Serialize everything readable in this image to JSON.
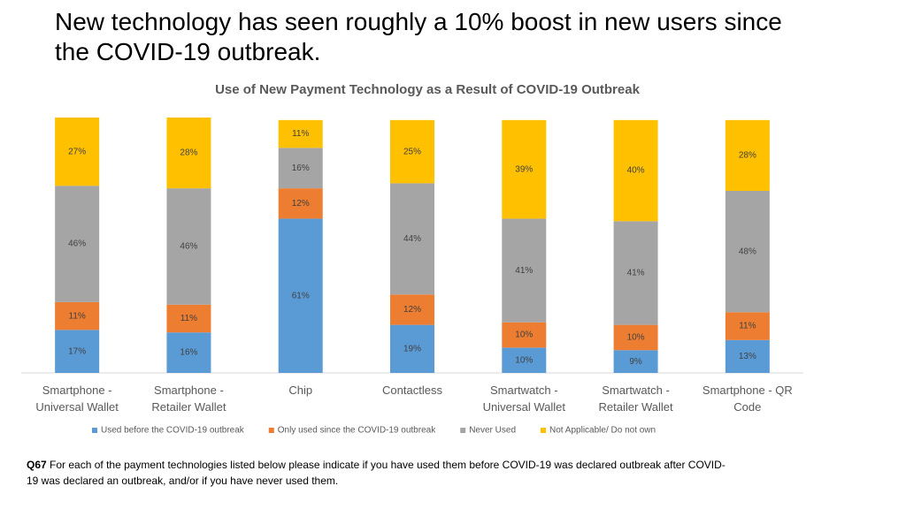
{
  "slide_title": "New technology has seen roughly a 10% boost in new users since the COVID-19 outbreak.",
  "chart_data": {
    "type": "stacked_bar",
    "title": "Use of New Payment Technology as a Result of COVID-19 Outbreak",
    "categories": [
      "Smartphone - Universal Wallet",
      "Smartphone - Retailer Wallet",
      "Chip",
      "Contactless",
      "Smartwatch - Universal Wallet",
      "Smartwatch - Retailer Wallet",
      "Smartphone - QR Code"
    ],
    "series": [
      {
        "name": "Used before the COVID-19 outbreak",
        "color": "#5b9bd5",
        "values": [
          17,
          16,
          61,
          19,
          10,
          9,
          13
        ],
        "value_labels": [
          "17%",
          "16%",
          "61%",
          "19%",
          "10%",
          "9%",
          "13%"
        ]
      },
      {
        "name": "Only used since the COVID-19 outbreak",
        "color": "#ed7d31",
        "values": [
          11,
          11,
          12,
          12,
          10,
          10,
          11
        ],
        "value_labels": [
          "11%",
          "11%",
          "12%",
          "12%",
          "10%",
          "10%",
          "11%"
        ]
      },
      {
        "name": "Never Used",
        "color": "#a5a5a5",
        "values": [
          46,
          46,
          16,
          44,
          41,
          41,
          48
        ],
        "value_labels": [
          "46%",
          "46%",
          "16%",
          "44%",
          "41%",
          "41%",
          "48%"
        ]
      },
      {
        "name": "Not Applicable/ Do not own",
        "color": "#ffc000",
        "values": [
          27,
          28,
          11,
          25,
          39,
          40,
          28
        ],
        "value_labels": [
          "27%",
          "28%",
          "11%",
          "25%",
          "39%",
          "40%",
          "28%"
        ]
      }
    ],
    "legend": "bottom"
  },
  "note": {
    "label": "Q67",
    "text": "For each of the payment technologies listed below please indicate if you have used them before COVID-19 was declared outbreak after COVID-19 was declared an outbreak, and/or if you have never used them."
  }
}
